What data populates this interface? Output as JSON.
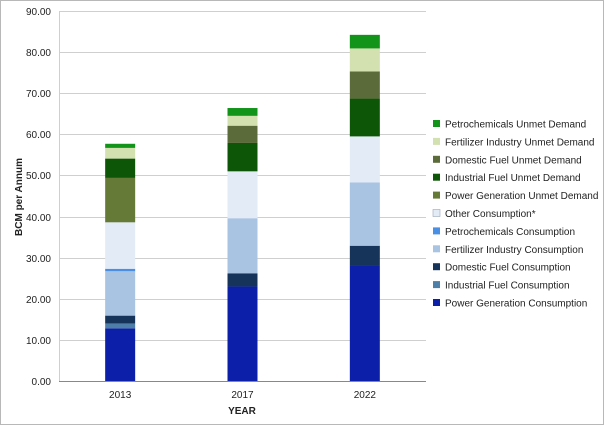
{
  "chart_data": {
    "type": "bar",
    "stacked": true,
    "xlabel": "YEAR",
    "ylabel": "BCM per Annum",
    "ylim": [
      0,
      90
    ],
    "yticks": [
      "0.00",
      "10.00",
      "20.00",
      "30.00",
      "40.00",
      "50.00",
      "60.00",
      "70.00",
      "80.00",
      "90.00"
    ],
    "grid": "horizontal",
    "legend_position": "right",
    "categories": [
      "2013",
      "2017",
      "2022"
    ],
    "series": [
      {
        "name": "Power Generation Consumption",
        "color": "#0b1fa8",
        "values": [
          12.8,
          23.0,
          28.2
        ]
      },
      {
        "name": "Industrial Fuel Consumption",
        "color": "#4d7fa8",
        "values": [
          1.2,
          0.0,
          0.0
        ]
      },
      {
        "name": "Domestic Fuel Consumption",
        "color": "#16335a",
        "values": [
          1.9,
          3.2,
          4.7
        ]
      },
      {
        "name": "Fertilizer Industry Consumption",
        "color": "#a9c3e2",
        "values": [
          10.8,
          13.4,
          15.4
        ]
      },
      {
        "name": "Petrochemicals Consumption",
        "color": "#4a8fe6",
        "values": [
          0.6,
          0.0,
          0.0
        ]
      },
      {
        "name": "Other Consumption*",
        "color": "#e3ebf7",
        "values": [
          11.3,
          11.4,
          11.2
        ]
      },
      {
        "name": "Power Generation Unmet Demand",
        "color": "#667a37",
        "values": [
          10.8,
          0.0,
          0.0
        ]
      },
      {
        "name": "Industrial Fuel Unmet Demand",
        "color": "#0d5608",
        "values": [
          4.7,
          6.9,
          9.2
        ]
      },
      {
        "name": "Domestic Fuel Unmet Demand",
        "color": "#5c6b3a",
        "values": [
          0.0,
          4.2,
          6.6
        ]
      },
      {
        "name": "Fertilizer Industry Unmet Demand",
        "color": "#d3e0b0",
        "values": [
          2.6,
          2.4,
          5.6
        ]
      },
      {
        "name": "Petrochemicals Unmet Demand",
        "color": "#12941b",
        "values": [
          1.0,
          1.9,
          3.3
        ]
      }
    ]
  }
}
